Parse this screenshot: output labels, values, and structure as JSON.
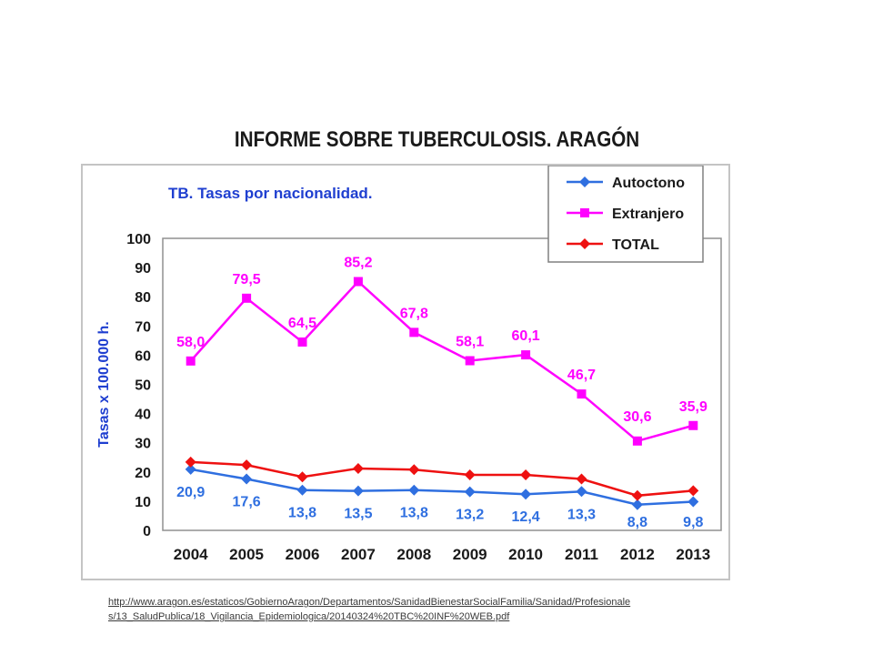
{
  "page": {
    "title": "INFORME SOBRE TUBERCULOSIS. ARAGÓN",
    "source_url": "http://www.aragon.es/estaticos/GobiernoAragon/Departamentos/SanidadBienestarSocialFamilia/Sanidad/Profesionales/13_SaludPublica/18_Vigilancia_Epidemiologica/20140324%20TBC%20INF%20WEB.pdf",
    "source_line1": "http://www.aragon.es/estaticos/GobiernoAragon/Departamentos/SanidadBienestarSocialFamilia/Sanidad/Profesionale",
    "source_line2": "s/13_SaludPublica/18_Vigilancia_Epidemiologica/20140324%20TBC%20INF%20WEB.pdf"
  },
  "chart_data": {
    "type": "line",
    "title": "TB. Tasas por nacionalidad.",
    "xlabel": "",
    "ylabel": "Tasas x 100.000 h.",
    "ylim": [
      0,
      100
    ],
    "yticks": [
      "0",
      "10",
      "20",
      "30",
      "40",
      "50",
      "60",
      "70",
      "80",
      "90",
      "100"
    ],
    "categories": [
      "2004",
      "2005",
      "2006",
      "2007",
      "2008",
      "2009",
      "2010",
      "2011",
      "2012",
      "2013"
    ],
    "grid": false,
    "legend_position": "top-right",
    "series": [
      {
        "name": "Autoctono",
        "color": "#2f6fe0",
        "marker": "diamond",
        "values": [
          20.9,
          17.6,
          13.8,
          13.5,
          13.8,
          13.2,
          12.4,
          13.3,
          8.8,
          9.8
        ],
        "labels": [
          "20,9",
          "17,6",
          "13,8",
          "13,5",
          "13,8",
          "13,2",
          "12,4",
          "13,3",
          "8,8",
          "9,8"
        ]
      },
      {
        "name": "Extranjero",
        "color": "#ff00ff",
        "marker": "square",
        "values": [
          58.0,
          79.5,
          64.5,
          85.2,
          67.8,
          58.1,
          60.1,
          46.7,
          30.6,
          35.9
        ],
        "labels": [
          "58,0",
          "79,5",
          "64,5",
          "85,2",
          "67,8",
          "58,1",
          "60,1",
          "46,7",
          "30,6",
          "35,9"
        ]
      },
      {
        "name": "TOTAL",
        "color": "#ee1111",
        "marker": "diamond",
        "values": [
          23.4,
          22.4,
          18.3,
          21.2,
          20.8,
          19.0,
          19.0,
          17.6,
          11.9,
          13.6
        ],
        "labels": []
      }
    ]
  }
}
